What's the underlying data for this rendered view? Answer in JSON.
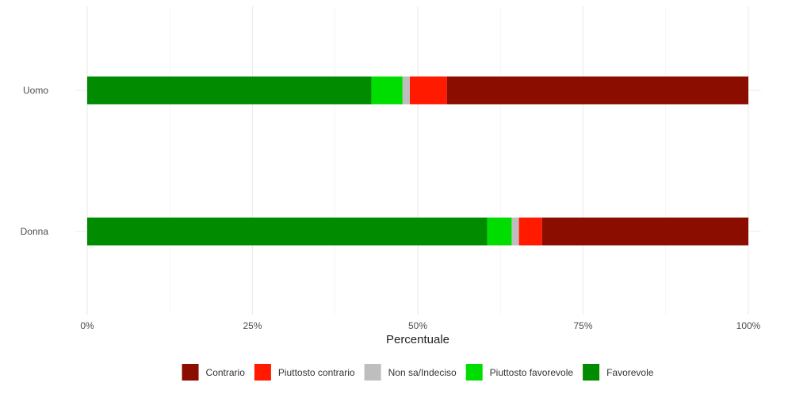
{
  "chart_data": {
    "type": "bar",
    "orientation": "horizontal",
    "stacked": true,
    "categories": [
      "Uomo",
      "Donna"
    ],
    "series": [
      {
        "name": "Favorevole",
        "color": "#008B00",
        "values": [
          43.0,
          60.5
        ]
      },
      {
        "name": "Piuttosto favorevole",
        "color": "#00DD00",
        "values": [
          4.7,
          3.7
        ]
      },
      {
        "name": "Non sa/Indeciso",
        "color": "#BEBEBE",
        "values": [
          1.1,
          1.1
        ]
      },
      {
        "name": "Piuttosto contrario",
        "color": "#FF1A00",
        "values": [
          5.6,
          3.5
        ]
      },
      {
        "name": "Contrario",
        "color": "#8B0D00",
        "values": [
          45.6,
          31.2
        ]
      }
    ],
    "legend_order": [
      "Contrario",
      "Piuttosto contrario",
      "Non sa/Indeciso",
      "Piuttosto favorevole",
      "Favorevole"
    ],
    "xlabel": "Percentuale",
    "ylabel": "",
    "xlim": [
      0,
      100
    ],
    "x_ticks": [
      0,
      25,
      50,
      75,
      100
    ],
    "x_tick_labels": [
      "0%",
      "25%",
      "50%",
      "75%",
      "100%"
    ],
    "grid": true,
    "legend_position": "bottom"
  }
}
